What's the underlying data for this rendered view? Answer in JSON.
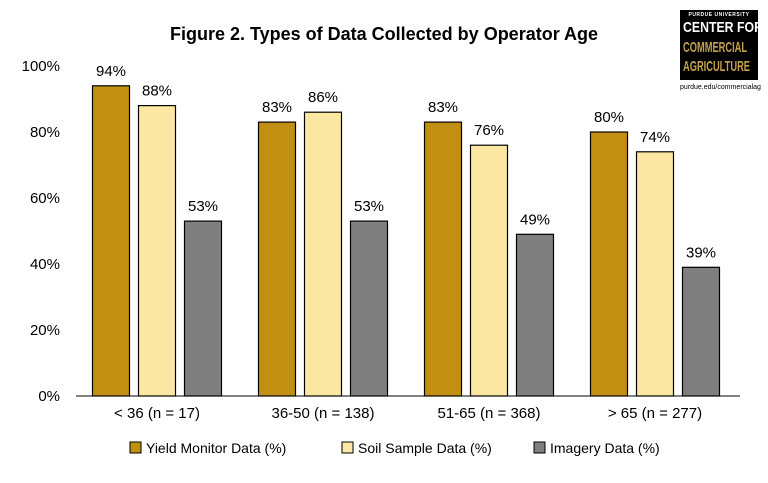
{
  "colors": {
    "yield": "#c18f12",
    "soil": "#fde8a3",
    "imagery": "#7f7f7f",
    "gold": "#c4a14d"
  },
  "logo": {
    "university": "PURDUE UNIVERSITY",
    "line1": "CENTER FOR",
    "line2": "COMMERCIAL",
    "line3": "AGRICULTURE",
    "url": "purdue.edu/commercialag"
  },
  "chart_data": {
    "type": "bar",
    "title": "Figure 2. Types of Data Collected by Operator Age",
    "categories": [
      "< 36 (n = 17)",
      "36-50 (n = 138)",
      "51-65 (n = 368)",
      "> 65 (n = 277)"
    ],
    "series": [
      {
        "name": "Yield Monitor Data (%)",
        "values": [
          94,
          83,
          83,
          80
        ],
        "labels": [
          "94%",
          "83%",
          "83%",
          "80%"
        ]
      },
      {
        "name": "Soil Sample Data (%)",
        "values": [
          88,
          86,
          76,
          74
        ],
        "labels": [
          "88%",
          "86%",
          "76%",
          "74%"
        ]
      },
      {
        "name": "Imagery Data (%)",
        "values": [
          53,
          53,
          49,
          39
        ],
        "labels": [
          "53%",
          "53%",
          "49%",
          "39%"
        ]
      }
    ],
    "ylim": [
      0,
      100
    ],
    "yticks": [
      0,
      20,
      40,
      60,
      80,
      100
    ],
    "ytick_labels": [
      "0%",
      "20%",
      "40%",
      "60%",
      "80%",
      "100%"
    ],
    "grid": false,
    "legend_position": "bottom"
  }
}
